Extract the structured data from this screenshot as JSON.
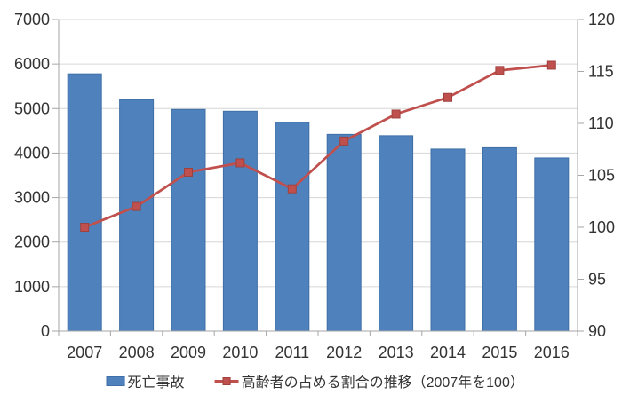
{
  "chart_data": {
    "type": "combo",
    "title": "",
    "categories": [
      "2007",
      "2008",
      "2009",
      "2010",
      "2011",
      "2012",
      "2013",
      "2014",
      "2015",
      "2016"
    ],
    "series": [
      {
        "name": "死亡事故",
        "type": "bar",
        "axis": "left",
        "color": "#4f81bd",
        "border_color": "#3f6fa6",
        "values": [
          5780,
          5200,
          4980,
          4940,
          4690,
          4420,
          4390,
          4090,
          4120,
          3890
        ]
      },
      {
        "name": "高齢者の占める割合の推移（2007年を100）",
        "type": "line",
        "axis": "right",
        "color": "#c0504d",
        "marker": "square",
        "marker_border_color": "#9e413e",
        "values": [
          100,
          102,
          105.3,
          106.2,
          103.7,
          108.3,
          110.9,
          112.5,
          115.1,
          115.6
        ]
      }
    ],
    "left_axis": {
      "min": 0,
      "max": 7000,
      "step": 1000,
      "tick_labels": [
        "0",
        "1000",
        "2000",
        "3000",
        "4000",
        "5000",
        "6000",
        "7000"
      ]
    },
    "right_axis": {
      "min": 90,
      "max": 120,
      "step": 5,
      "tick_labels": [
        "90",
        "95",
        "100",
        "105",
        "110",
        "115",
        "120"
      ]
    },
    "xlabel": "",
    "ylabel": "",
    "grid": true,
    "legend_position": "bottom",
    "colors": {
      "background": "#ffffff",
      "gridline": "#d6d6d6",
      "axis_line": "#a6a6a6",
      "text": "#333333"
    }
  }
}
